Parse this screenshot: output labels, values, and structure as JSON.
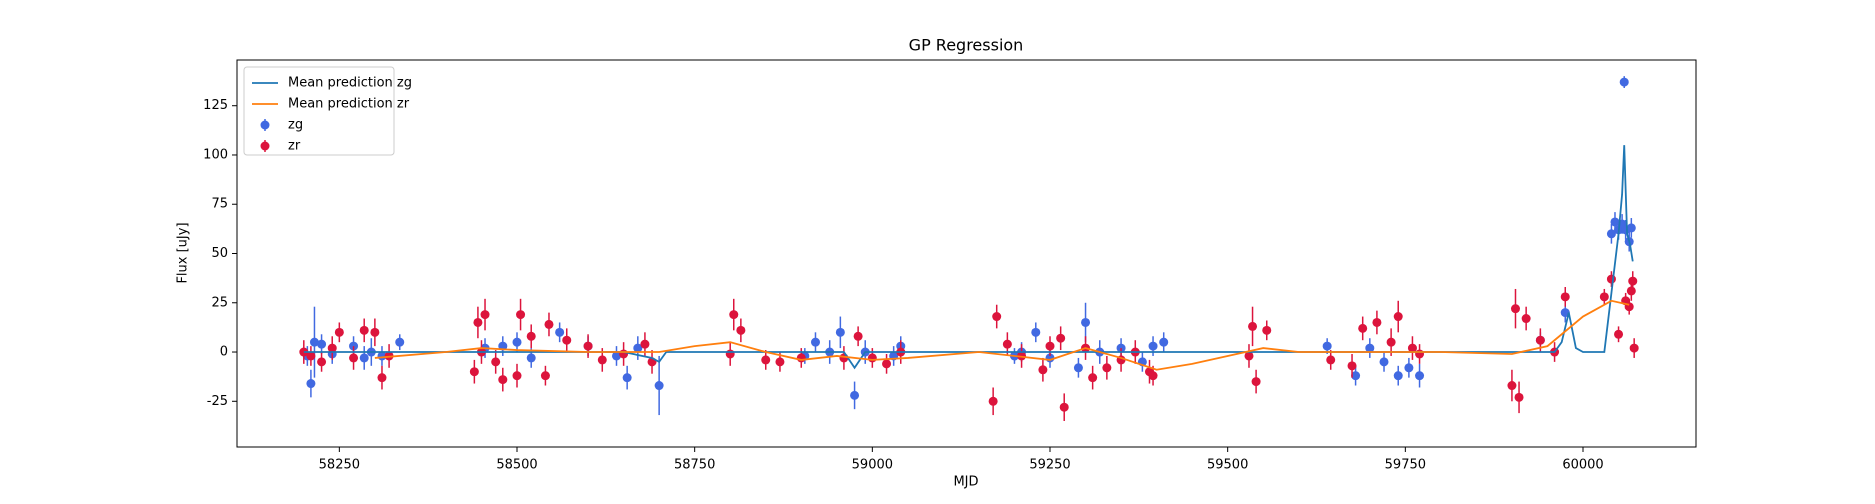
{
  "chart_data": {
    "type": "errorbar",
    "title": "GP Regression",
    "x_label": "MJD",
    "y_label": "Flux [uJy]",
    "xlim": [
      58106,
      60159
    ],
    "ylim": [
      -48.2,
      148.2
    ],
    "xticks": [
      58250,
      58500,
      58750,
      59000,
      59250,
      59500,
      59750,
      60000
    ],
    "yticks": [
      -25,
      0,
      25,
      50,
      75,
      100,
      125
    ],
    "grid": false,
    "legend": "upper left",
    "lines": [
      {
        "name": "Mean prediction zg",
        "color": "#1f77b4",
        "x": [
          58200,
          58340,
          58650,
          58690,
          58700,
          58710,
          58960,
          58975,
          58990,
          59200,
          59650,
          59960,
          59970,
          59980,
          59990,
          60000,
          60030,
          60040,
          60050,
          60055,
          60058,
          60062,
          60066,
          60070
        ],
        "values": [
          0,
          0,
          0,
          -3,
          -5,
          0,
          0,
          -8,
          0,
          0,
          0,
          0,
          5,
          20,
          2,
          0,
          0,
          30,
          60,
          80,
          105,
          60,
          55,
          46
        ]
      },
      {
        "name": "Mean prediction zr",
        "color": "#ff7f0e",
        "x": [
          58300,
          58400,
          58450,
          58500,
          58600,
          58700,
          58750,
          58800,
          58850,
          58900,
          58950,
          59000,
          59050,
          59150,
          59250,
          59300,
          59350,
          59400,
          59450,
          59500,
          59550,
          59600,
          59700,
          59800,
          59900,
          59950,
          60000,
          60040,
          60065
        ],
        "values": [
          -3,
          0,
          2,
          1,
          0,
          0,
          3,
          5,
          0,
          -4,
          -2,
          -4,
          -3,
          0,
          -4,
          2,
          -3,
          -9,
          -6,
          -2,
          2,
          0,
          0,
          0,
          -1,
          3,
          18,
          26,
          24
        ]
      }
    ],
    "series": [
      {
        "name": "zg",
        "color": "#4169e1",
        "x": [
          58205,
          58210,
          58215,
          58225,
          58240,
          58270,
          58285,
          58295,
          58310,
          58335,
          58455,
          58480,
          58500,
          58520,
          58560,
          58600,
          58640,
          58655,
          58670,
          58700,
          58905,
          58920,
          58940,
          58955,
          58975,
          58990,
          59030,
          59040,
          59200,
          59210,
          59230,
          59250,
          59290,
          59300,
          59320,
          59350,
          59380,
          59395,
          59410,
          59640,
          59680,
          59700,
          59720,
          59740,
          59755,
          59770,
          59940,
          59975,
          60040,
          60045,
          60050,
          60055,
          60058,
          60060,
          60065,
          60068
        ],
        "values": [
          -2,
          -16,
          5,
          4,
          -1,
          3,
          -3,
          0,
          -2,
          5,
          2,
          3,
          5,
          -3,
          10,
          3,
          -2,
          -13,
          2,
          -17,
          -2,
          5,
          0,
          10,
          -22,
          0,
          -2,
          3,
          -2,
          0,
          10,
          -3,
          -8,
          15,
          0,
          2,
          -5,
          3,
          5,
          3,
          -12,
          2,
          -5,
          -12,
          -8,
          -12,
          6,
          20,
          60,
          66,
          62,
          65,
          137,
          62,
          56,
          63
        ],
        "errors": [
          5,
          7,
          18,
          5,
          5,
          5,
          6,
          7,
          5,
          4,
          5,
          5,
          5,
          5,
          5,
          5,
          5,
          6,
          6,
          15,
          4,
          5,
          6,
          8,
          7,
          6,
          5,
          5,
          4,
          5,
          5,
          5,
          5,
          10,
          6,
          5,
          5,
          5,
          5,
          4,
          5,
          5,
          5,
          5,
          5,
          6,
          4,
          5,
          5,
          5,
          5,
          5,
          3,
          5,
          5,
          5
        ]
      },
      {
        "name": "zr",
        "color": "#dc143c",
        "x": [
          58200,
          58210,
          58225,
          58240,
          58250,
          58270,
          58285,
          58300,
          58310,
          58320,
          58440,
          58445,
          58450,
          58455,
          58470,
          58480,
          58500,
          58505,
          58520,
          58540,
          58545,
          58570,
          58600,
          58620,
          58650,
          58680,
          58690,
          58800,
          58805,
          58815,
          58850,
          58870,
          58900,
          58960,
          58980,
          59000,
          59020,
          59040,
          59170,
          59175,
          59190,
          59210,
          59240,
          59250,
          59265,
          59270,
          59300,
          59310,
          59330,
          59350,
          59370,
          59390,
          59395,
          59530,
          59535,
          59540,
          59555,
          59645,
          59675,
          59690,
          59710,
          59730,
          59740,
          59760,
          59770,
          59900,
          59905,
          59910,
          59920,
          59940,
          59960,
          59975,
          60030,
          60040,
          60050,
          60060,
          60065,
          60068,
          60070,
          60072
        ],
        "values": [
          0,
          -2,
          -5,
          2,
          10,
          -3,
          11,
          10,
          -13,
          -2,
          -10,
          15,
          0,
          19,
          -5,
          -14,
          -12,
          19,
          8,
          -12,
          14,
          6,
          3,
          -4,
          -1,
          4,
          -5,
          -1,
          19,
          11,
          -4,
          -5,
          -3,
          -3,
          8,
          -3,
          -6,
          0,
          -25,
          18,
          4,
          -2,
          -9,
          3,
          7,
          -28,
          2,
          -13,
          -8,
          -4,
          0,
          -10,
          -12,
          -2,
          13,
          -15,
          11,
          -4,
          -7,
          12,
          15,
          5,
          18,
          2,
          -1,
          -17,
          22,
          -23,
          17,
          6,
          0,
          28,
          28,
          37,
          9,
          26,
          23,
          31,
          36,
          2
        ],
        "errors": [
          6,
          5,
          5,
          6,
          5,
          6,
          6,
          7,
          6,
          6,
          6,
          8,
          6,
          8,
          6,
          6,
          6,
          8,
          6,
          5,
          6,
          6,
          6,
          6,
          6,
          6,
          6,
          6,
          8,
          6,
          5,
          5,
          5,
          6,
          5,
          5,
          5,
          6,
          7,
          6,
          6,
          6,
          6,
          5,
          6,
          7,
          6,
          6,
          6,
          6,
          6,
          6,
          5,
          6,
          10,
          6,
          5,
          5,
          6,
          6,
          6,
          7,
          8,
          6,
          5,
          8,
          10,
          8,
          6,
          6,
          5,
          5,
          4,
          4,
          4,
          4,
          4,
          5,
          5,
          5
        ]
      }
    ]
  }
}
